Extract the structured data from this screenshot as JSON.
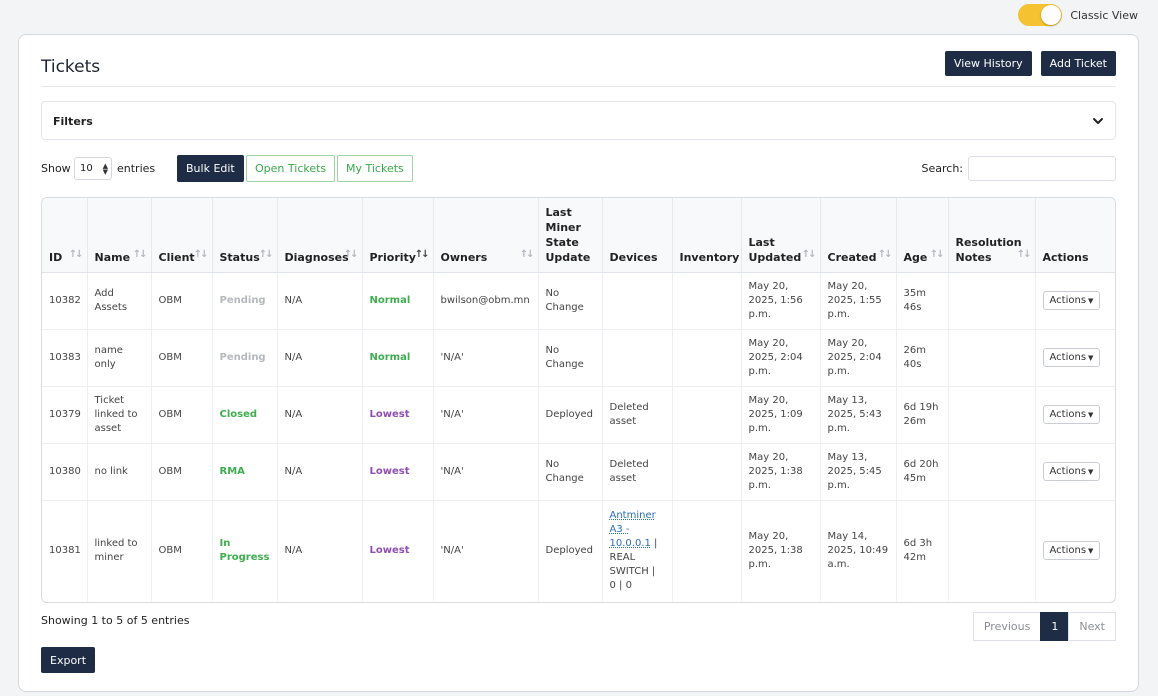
{
  "topbar": {
    "classic_view_label": "Classic View",
    "classic_view_on": true,
    "toggle_color": "#f5c230"
  },
  "header": {
    "title": "Tickets",
    "view_history_label": "View History",
    "add_ticket_label": "Add Ticket"
  },
  "filters": {
    "label": "Filters"
  },
  "controls": {
    "show_label": "Show",
    "page_length": "10",
    "entries_label": "entries",
    "bulk_edit_label": "Bulk Edit",
    "open_tickets_label": "Open Tickets",
    "my_tickets_label": "My Tickets",
    "search_label": "Search:",
    "search_value": ""
  },
  "table": {
    "columns": [
      "ID",
      "Name",
      "Client",
      "Status",
      "Diagnoses",
      "Priority",
      "Owners",
      "Last Miner State Update",
      "Devices",
      "Inventory",
      "Last Updated",
      "Created",
      "Age",
      "Resolution Notes",
      "Actions"
    ],
    "rows": [
      {
        "id": "10382",
        "name": "Add Assets",
        "client": "OBM",
        "status": "Pending",
        "diagnoses": "N/A",
        "priority": "Normal",
        "owners": "bwilson@obm.mn",
        "miner_state": "No Change",
        "devices": "",
        "device_link": "",
        "device_rest": "",
        "inventory": "",
        "last_updated": "May 20, 2025, 1:56 p.m.",
        "created": "May 20, 2025, 1:55 p.m.",
        "age": "35m 46s",
        "resolution_notes": "",
        "actions": "Actions"
      },
      {
        "id": "10383",
        "name": "name only",
        "client": "OBM",
        "status": "Pending",
        "diagnoses": "N/A",
        "priority": "Normal",
        "owners": "'N/A'",
        "miner_state": "No Change",
        "devices": "",
        "device_link": "",
        "device_rest": "",
        "inventory": "",
        "last_updated": "May 20, 2025, 2:04 p.m.",
        "created": "May 20, 2025, 2:04 p.m.",
        "age": "26m 40s",
        "resolution_notes": "",
        "actions": "Actions"
      },
      {
        "id": "10379",
        "name": "Ticket linked to asset",
        "client": "OBM",
        "status": "Closed",
        "diagnoses": "N/A",
        "priority": "Lowest",
        "owners": "'N/A'",
        "miner_state": "Deployed",
        "devices": "Deleted asset",
        "device_link": "",
        "device_rest": "",
        "inventory": "",
        "last_updated": "May 20, 2025, 1:09 p.m.",
        "created": "May 13, 2025, 5:43 p.m.",
        "age": "6d 19h 26m",
        "resolution_notes": "",
        "actions": "Actions"
      },
      {
        "id": "10380",
        "name": "no link",
        "client": "OBM",
        "status": "RMA",
        "diagnoses": "N/A",
        "priority": "Lowest",
        "owners": "'N/A'",
        "miner_state": "No Change",
        "devices": "Deleted asset",
        "device_link": "",
        "device_rest": "",
        "inventory": "",
        "last_updated": "May 20, 2025, 1:38 p.m.",
        "created": "May 13, 2025, 5:45 p.m.",
        "age": "6d 20h 45m",
        "resolution_notes": "",
        "actions": "Actions"
      },
      {
        "id": "10381",
        "name": "linked to miner",
        "client": "OBM",
        "status": "In Progress",
        "diagnoses": "N/A",
        "priority": "Lowest",
        "owners": "'N/A'",
        "miner_state": "Deployed",
        "devices": "",
        "device_link": "Antminer A3 - 10.0.0.1",
        "device_rest": " | REAL SWITCH | 0 | 0",
        "inventory": "",
        "last_updated": "May 20, 2025, 1:38 p.m.",
        "created": "May 14, 2025, 10:49 a.m.",
        "age": "6d 3h 42m",
        "resolution_notes": "",
        "actions": "Actions"
      }
    ]
  },
  "footer": {
    "info": "Showing 1 to 5 of 5 entries",
    "previous_label": "Previous",
    "current_page": "1",
    "next_label": "Next",
    "export_label": "Export"
  },
  "colors": {
    "primary_dark": "#1e2d45",
    "status_green": "#3cae4f",
    "status_pending": "#b5b8bc",
    "priority_lowest": "#8e4fb5",
    "link": "#2a6ebb"
  }
}
